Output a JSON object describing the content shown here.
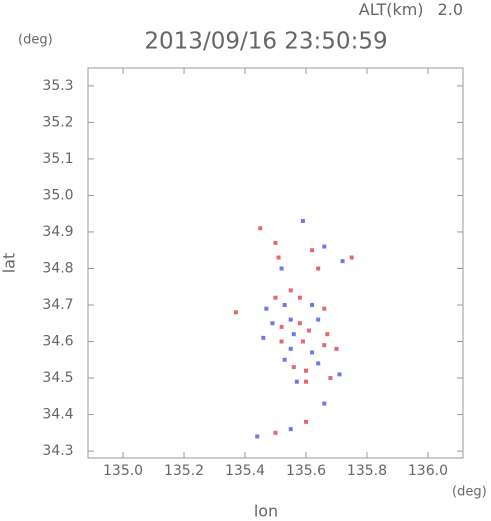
{
  "chart_data": {
    "type": "scatter",
    "title": "2013/09/16 23:50:59",
    "altitude_label": "ALT(km)",
    "altitude": "2.0",
    "y_unit": "(deg)",
    "x_unit": "(deg)",
    "x_label": "lon",
    "y_label": "lat",
    "xlim": [
      134.885,
      136.115
    ],
    "ylim": [
      34.281,
      35.349
    ],
    "xticks": [
      {
        "value": 135.0,
        "label": "135.0"
      },
      135.2,
      135.4,
      135.6,
      135.8,
      {
        "value": 136.0,
        "label": "136.0"
      }
    ],
    "yticks": [
      34.3,
      34.4,
      34.5,
      34.6,
      34.7,
      34.8,
      34.9,
      {
        "value": 35.0,
        "label": "35.0"
      },
      35.1,
      35.2,
      35.3
    ],
    "x": [
      135.45,
      135.5,
      135.51,
      135.52,
      135.59,
      135.62,
      135.64,
      135.66,
      135.72,
      135.75,
      135.37,
      135.47,
      135.5,
      135.53,
      135.55,
      135.58,
      135.62,
      135.66,
      135.49,
      135.52,
      135.55,
      135.58,
      135.61,
      135.64,
      135.67,
      135.52,
      135.55,
      135.59,
      135.62,
      135.66,
      135.7,
      135.53,
      135.56,
      135.6,
      135.64,
      135.68,
      135.71,
      135.57,
      135.6,
      135.44,
      135.5,
      135.55,
      135.6,
      135.66,
      135.46,
      135.56
    ],
    "y": [
      34.91,
      34.87,
      34.83,
      34.8,
      34.93,
      34.85,
      34.8,
      34.86,
      34.82,
      34.83,
      34.68,
      34.69,
      34.72,
      34.7,
      34.74,
      34.72,
      34.7,
      34.69,
      34.65,
      34.64,
      34.66,
      34.65,
      34.63,
      34.66,
      34.62,
      34.6,
      34.58,
      34.6,
      34.57,
      34.59,
      34.58,
      34.55,
      34.53,
      34.52,
      34.54,
      34.5,
      34.51,
      34.49,
      34.49,
      34.34,
      34.35,
      34.36,
      34.38,
      34.43,
      34.61,
      34.62
    ],
    "colors": [
      "#e8646e",
      "#e8646e",
      "#e8646e",
      "#6f78e8",
      "#6f78e8",
      "#e8646e",
      "#e8646e",
      "#6f78e8",
      "#6f78e8",
      "#e8646e",
      "#e8646e",
      "#6f78e8",
      "#e8646e",
      "#6f78e8",
      "#e8646e",
      "#e8646e",
      "#6f78e8",
      "#e8646e",
      "#6f78e8",
      "#e8646e",
      "#6f78e8",
      "#e8646e",
      "#e8646e",
      "#6f78e8",
      "#e8646e",
      "#e8646e",
      "#6f78e8",
      "#e8646e",
      "#6f78e8",
      "#e8646e",
      "#e8646e",
      "#6f78e8",
      "#e8646e",
      "#e8646e",
      "#6f78e8",
      "#e8646e",
      "#6f78e8",
      "#6f78e8",
      "#e8646e",
      "#6f78e8",
      "#e8646e",
      "#6f78e8",
      "#e8646e",
      "#6f78e8",
      "#6f78e8",
      "#6f78e8"
    ]
  }
}
